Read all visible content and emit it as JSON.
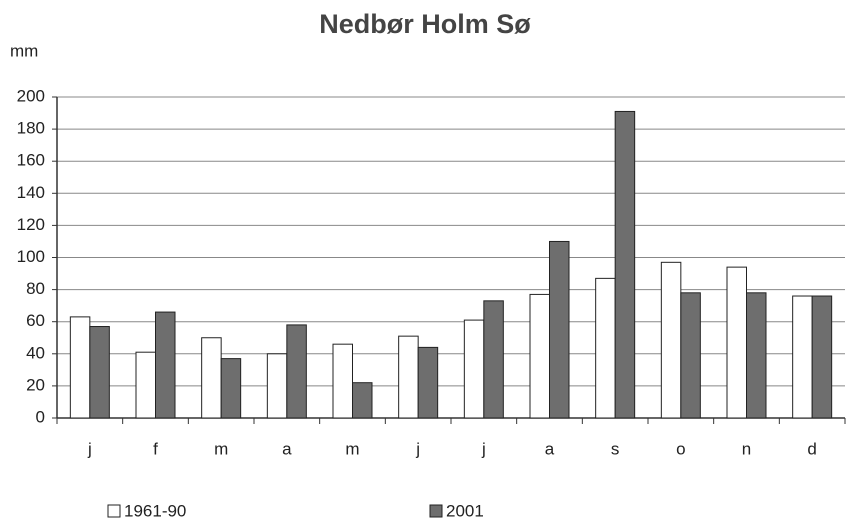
{
  "chart_data": {
    "type": "bar",
    "title": "Nedbør Holm Sø",
    "y_label": "mm",
    "categories": [
      "j",
      "f",
      "m",
      "a",
      "m",
      "j",
      "j",
      "a",
      "s",
      "o",
      "n",
      "d"
    ],
    "series": [
      {
        "name": "1961-90",
        "color": "#ffffff",
        "values": [
          63,
          41,
          50,
          40,
          46,
          51,
          61,
          77,
          87,
          97,
          94,
          76
        ]
      },
      {
        "name": "2001",
        "color": "#6e6e6e",
        "values": [
          57,
          66,
          37,
          58,
          22,
          44,
          73,
          110,
          191,
          78,
          78,
          76
        ]
      }
    ],
    "ylim": [
      0,
      200
    ],
    "yticks": [
      0,
      20,
      40,
      60,
      80,
      100,
      120,
      140,
      160,
      180,
      200
    ],
    "grid": true,
    "legend": "bottom"
  }
}
